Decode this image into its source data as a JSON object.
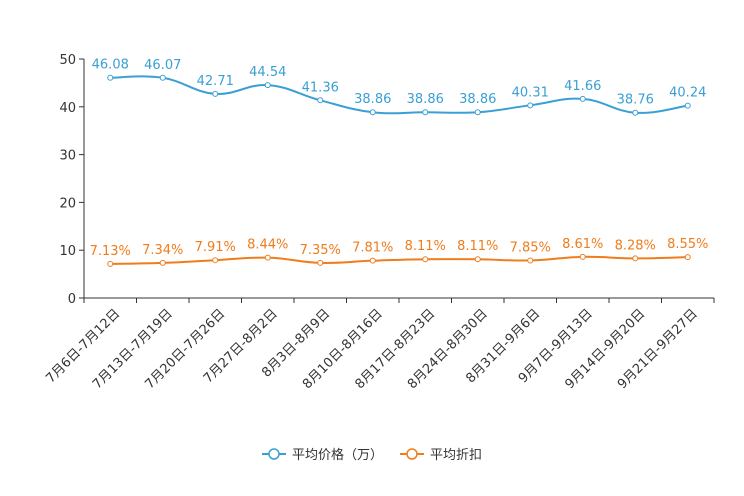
{
  "chart_data": {
    "type": "line",
    "categories": [
      "7月6日-7月12日",
      "7月13日-7月19日",
      "7月20日-7月26日",
      "7月27日-8月2日",
      "8月3日-8月9日",
      "8月10日-8月16日",
      "8月17日-8月23日",
      "8月24日-8月30日",
      "8月31日-9月6日",
      "9月7日-9月13日",
      "9月14日-9月20日",
      "9月21日-9月27日"
    ],
    "ylim": [
      0,
      50
    ],
    "yticks": [
      0,
      10,
      20,
      30,
      40,
      50
    ],
    "grid": false,
    "legend_position": "bottom-center",
    "series": [
      {
        "name": "平均价格（万）",
        "color": "#3a9fd4",
        "values": [
          46.08,
          46.07,
          42.71,
          44.54,
          41.36,
          38.86,
          38.86,
          38.86,
          40.31,
          41.66,
          38.76,
          40.24
        ],
        "labels": [
          "46.08",
          "46.07",
          "42.71",
          "44.54",
          "41.36",
          "38.86",
          "38.86",
          "38.86",
          "40.31",
          "41.66",
          "38.76",
          "40.24"
        ]
      },
      {
        "name": "平均折扣",
        "color": "#f07c1b",
        "values": [
          7.13,
          7.34,
          7.91,
          8.44,
          7.35,
          7.81,
          8.11,
          8.11,
          7.85,
          8.61,
          8.28,
          8.55
        ],
        "labels": [
          "7.13%",
          "7.34%",
          "7.91%",
          "8.44%",
          "7.35%",
          "7.81%",
          "8.11%",
          "8.11%",
          "7.85%",
          "8.61%",
          "8.28%",
          "8.55%"
        ]
      }
    ]
  }
}
